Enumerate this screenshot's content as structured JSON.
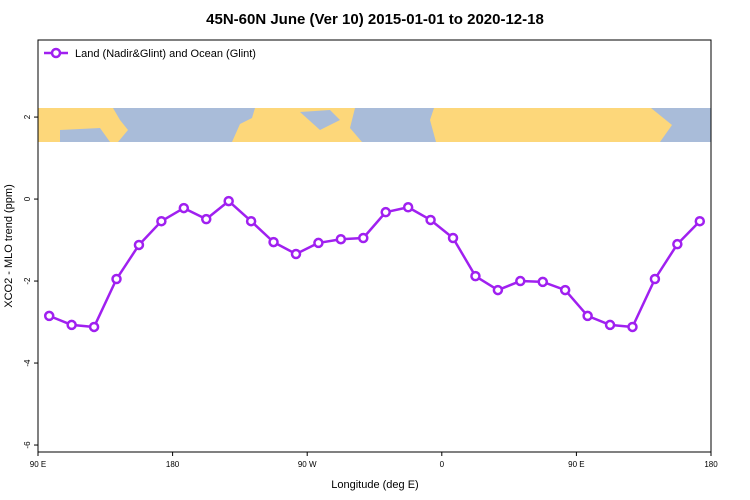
{
  "chart_data": {
    "type": "line",
    "title": "45N-60N June (Ver 10)   2015-01-01 to 2020-12-18",
    "x_label": "Longitude (deg E)",
    "y_label": "XCO2 - MLO trend (ppm)",
    "xlim": [
      90,
      540
    ],
    "ylim": [
      -6.17,
      3.88
    ],
    "xticks": [
      {
        "value": 90,
        "label": "90 E"
      },
      {
        "value": 180,
        "label": "180"
      },
      {
        "value": 270,
        "label": "90 W"
      },
      {
        "value": 360,
        "label": "0"
      },
      {
        "value": 450,
        "label": "90 E"
      },
      {
        "value": 540,
        "label": "180"
      }
    ],
    "yticks": [
      2,
      0,
      -2,
      -4,
      -6
    ],
    "legend_position": "top-left",
    "x": [
      97.5,
      112.5,
      127.5,
      142.5,
      157.5,
      172.5,
      187.5,
      202.5,
      217.5,
      232.5,
      247.5,
      262.5,
      277.5,
      292.5,
      307.5,
      322.5,
      337.5,
      352.5,
      367.5,
      382.5,
      397.5,
      412.5,
      427.5,
      442.5,
      457.5,
      472.5,
      487.5,
      502.5,
      517.5,
      532.5
    ],
    "series": [
      {
        "name": "Land (Nadir&Glint) and Ocean (Glint)",
        "color": "#a020f0",
        "values": [
          -2.85,
          -3.07,
          -3.12,
          -1.95,
          -1.12,
          -0.54,
          -0.22,
          -0.49,
          -0.05,
          -0.54,
          -1.05,
          -1.34,
          -1.07,
          -0.98,
          -0.95,
          -0.32,
          -0.2,
          -0.51,
          -0.95,
          -1.88,
          -2.22,
          -2.0,
          -2.02,
          -2.22,
          -2.85,
          -3.07,
          -3.12,
          -1.95,
          -1.1,
          -0.54
        ]
      }
    ]
  }
}
